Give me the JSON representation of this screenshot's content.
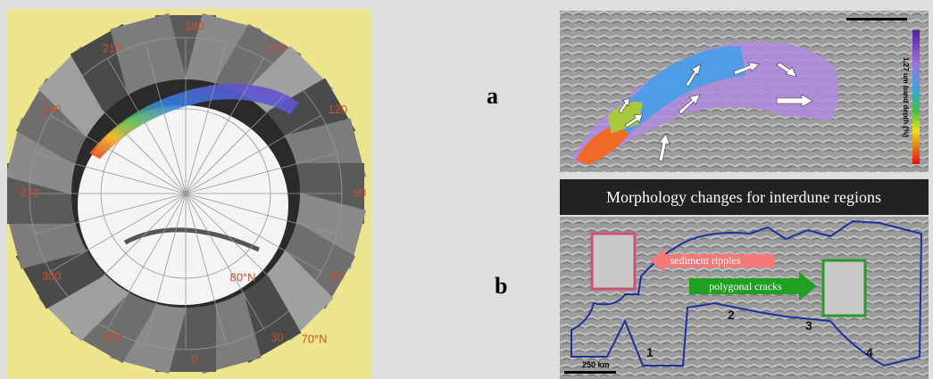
{
  "polar_map": {
    "longitude_labels": [
      "180",
      "150",
      "120",
      "90",
      "60",
      "30",
      "0",
      "330",
      "300",
      "270",
      "240",
      "210"
    ],
    "latitude_labels": [
      "80°N",
      "70°N"
    ]
  },
  "panel_a": {
    "label": "a",
    "colorbar_title": "1.27 um band depth (%)"
  },
  "panel_b": {
    "label": "b",
    "title": "Morphology changes for interdune regions",
    "annotations": [
      "sediment ripples",
      "polygonal cracks"
    ],
    "regions": [
      "1",
      "2",
      "3",
      "4"
    ],
    "scale_bar": "250 km"
  }
}
